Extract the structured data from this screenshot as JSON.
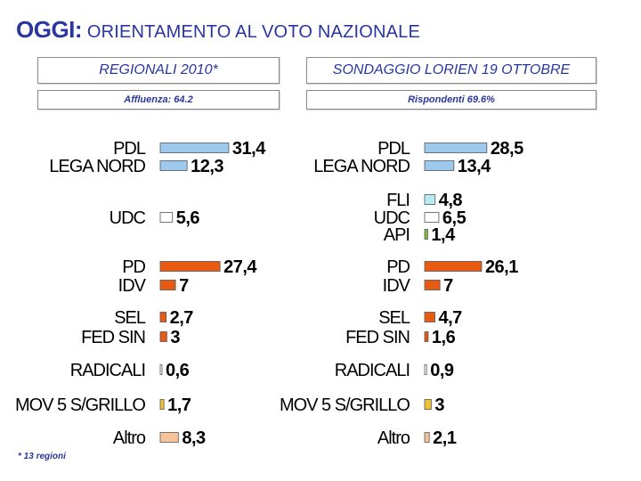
{
  "header": {
    "title_strong": "OGGI:",
    "title_rest": " ORIENTAMENTO AL VOTO NAZIONALE",
    "left_panel": "REGIONALI 2010*",
    "left_sub": "Affluenza: 64.2",
    "right_panel": "SONDAGGIO LORIEN 19 OTTOBRE",
    "right_sub": "Rispondenti 69.6%"
  },
  "footnote": "* 13 regioni",
  "colors": {
    "title": "#2a36a0",
    "blue": "#9dc9ee",
    "white": "#ffffff",
    "orange": "#e85a12",
    "light_orange": "#f7c39a",
    "cyan": "#b6ecf4",
    "green": "#86b83c",
    "yellow": "#f1c232"
  },
  "chart_data": [
    {
      "type": "bar",
      "orientation": "horizontal",
      "title": "REGIONALI 2010*",
      "subtitle": "Affluenza: 64.2",
      "categories": [
        "PDL",
        "LEGA NORD",
        "UDC",
        "PD",
        "IDV",
        "SEL",
        "FED SIN",
        "RADICALI",
        "MOV 5 S/GRILLO",
        "Altro"
      ],
      "values": [
        31.4,
        12.3,
        5.6,
        27.4,
        7,
        2.7,
        3,
        0.6,
        1.7,
        8.3
      ],
      "value_labels": [
        "31,4",
        "12,3",
        "5,6",
        "27,4",
        "7",
        "2,7",
        "3",
        "0,6",
        "1,7",
        "8,3"
      ],
      "colors": [
        "#9dc9ee",
        "#9dc9ee",
        "#ffffff",
        "#e85a12",
        "#e85a12",
        "#e85a12",
        "#e85a12",
        "#ffffff",
        "#f1c232",
        "#f7c39a"
      ]
    },
    {
      "type": "bar",
      "orientation": "horizontal",
      "title": "SONDAGGIO LORIEN 19 OTTOBRE",
      "subtitle": "Rispondenti 69.6%",
      "categories": [
        "PDL",
        "LEGA NORD",
        "FLI",
        "UDC",
        "API",
        "PD",
        "IDV",
        "SEL",
        "FED SIN",
        "RADICALI",
        "MOV 5 S/GRILLO",
        "Altro"
      ],
      "values": [
        28.5,
        13.4,
        4.8,
        6.5,
        1.4,
        26.1,
        7,
        4.7,
        1.6,
        0.9,
        3,
        2.1
      ],
      "value_labels": [
        "28,5",
        "13,4",
        "4,8",
        "6,5",
        "1,4",
        "26,1",
        "7",
        "4,7",
        "1,6",
        "0,9",
        "3",
        "2,1"
      ],
      "colors": [
        "#9dc9ee",
        "#9dc9ee",
        "#b6ecf4",
        "#ffffff",
        "#86b83c",
        "#e85a12",
        "#e85a12",
        "#e85a12",
        "#e85a12",
        "#ffffff",
        "#f1c232",
        "#f7c39a"
      ]
    }
  ]
}
